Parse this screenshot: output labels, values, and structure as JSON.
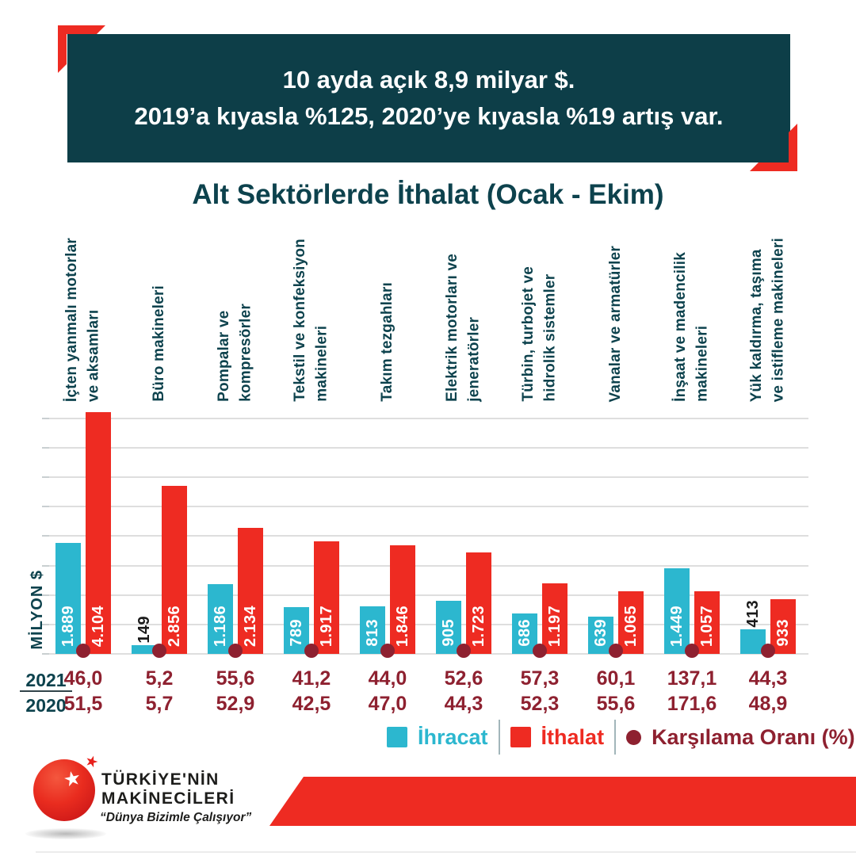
{
  "banner": {
    "line1": "10 ayda açık 8,9 milyar $.",
    "line2": "2019’a kıyasla %125, 2020’ye kıyasla %19 artış var."
  },
  "title": "Alt Sektörlerde İthalat (Ocak - Ekim)",
  "y_axis_label": "MİLYON $",
  "legend": {
    "export": "İhracat",
    "import": "İthalat",
    "coverage": "Karşılama Oranı (%)"
  },
  "logo": {
    "line1": "TÜRKİYE'NİN",
    "line2": "MAKİNECİLERİ",
    "slogan": "“Dünya Bizimle Çalışıyor”"
  },
  "colors": {
    "teal": "#0d3e48",
    "cyan": "#2cb7cf",
    "red": "#ee2b22",
    "maroon": "#8e2130",
    "gridline": "#dedede"
  },
  "chart_data": {
    "type": "bar",
    "title": "Alt Sektörlerde İthalat (Ocak - Ekim)",
    "unit": "MİLYON $",
    "ylim": [
      0,
      4000
    ],
    "grid_step": 500,
    "grid": true,
    "legend_position": "bottom",
    "categories": [
      "İçten yanmalı motorlar\nve aksamları",
      "Büro makineleri",
      "Pompalar ve\nkompresörler",
      "Tekstil ve konfeksiyon\nmakineleri",
      "Takım tezgahları",
      "Elektrik motorları ve\njeneratörler",
      "Türbin, turbojet ve\nhidrolik sistemler",
      "Vanalar ve armatürler",
      "İnşaat ve madencilik\nmakineleri",
      "Yük kaldırma, taşıma\nve istifleme makineleri"
    ],
    "series": [
      {
        "name": "İhracat",
        "color": "#2cb7cf",
        "values": [
          1889,
          149,
          1186,
          789,
          813,
          905,
          686,
          639,
          1449,
          413
        ],
        "display_labels": [
          "1.889",
          "149",
          "1.186",
          "789",
          "813",
          "905",
          "686",
          "639",
          "1.449",
          "413"
        ]
      },
      {
        "name": "İthalat",
        "color": "#ee2b22",
        "values": [
          4104,
          2856,
          2134,
          1917,
          1846,
          1723,
          1197,
          1065,
          1057,
          933
        ],
        "display_labels": [
          "4.104",
          "2.856",
          "2.134",
          "1.917",
          "1.846",
          "1.723",
          "1.197",
          "1.065",
          "1.057",
          "933"
        ]
      }
    ],
    "coverage": {
      "name": "Karşılama Oranı (%)",
      "color": "#8e2130",
      "rows": [
        {
          "year": "2021",
          "values": [
            46.0,
            5.2,
            55.6,
            41.2,
            44.0,
            52.6,
            57.3,
            60.1,
            137.1,
            44.3
          ],
          "labels": [
            "46,0",
            "5,2",
            "55,6",
            "41,2",
            "44,0",
            "52,6",
            "57,3",
            "60,1",
            "137,1",
            "44,3"
          ]
        },
        {
          "year": "2020",
          "values": [
            51.5,
            5.7,
            52.9,
            42.5,
            47.0,
            44.3,
            52.3,
            55.6,
            171.6,
            48.9
          ],
          "labels": [
            "51,5",
            "5,7",
            "52,9",
            "42,5",
            "47,0",
            "44,3",
            "52,3",
            "55,6",
            "171,6",
            "48,9"
          ]
        }
      ]
    }
  }
}
